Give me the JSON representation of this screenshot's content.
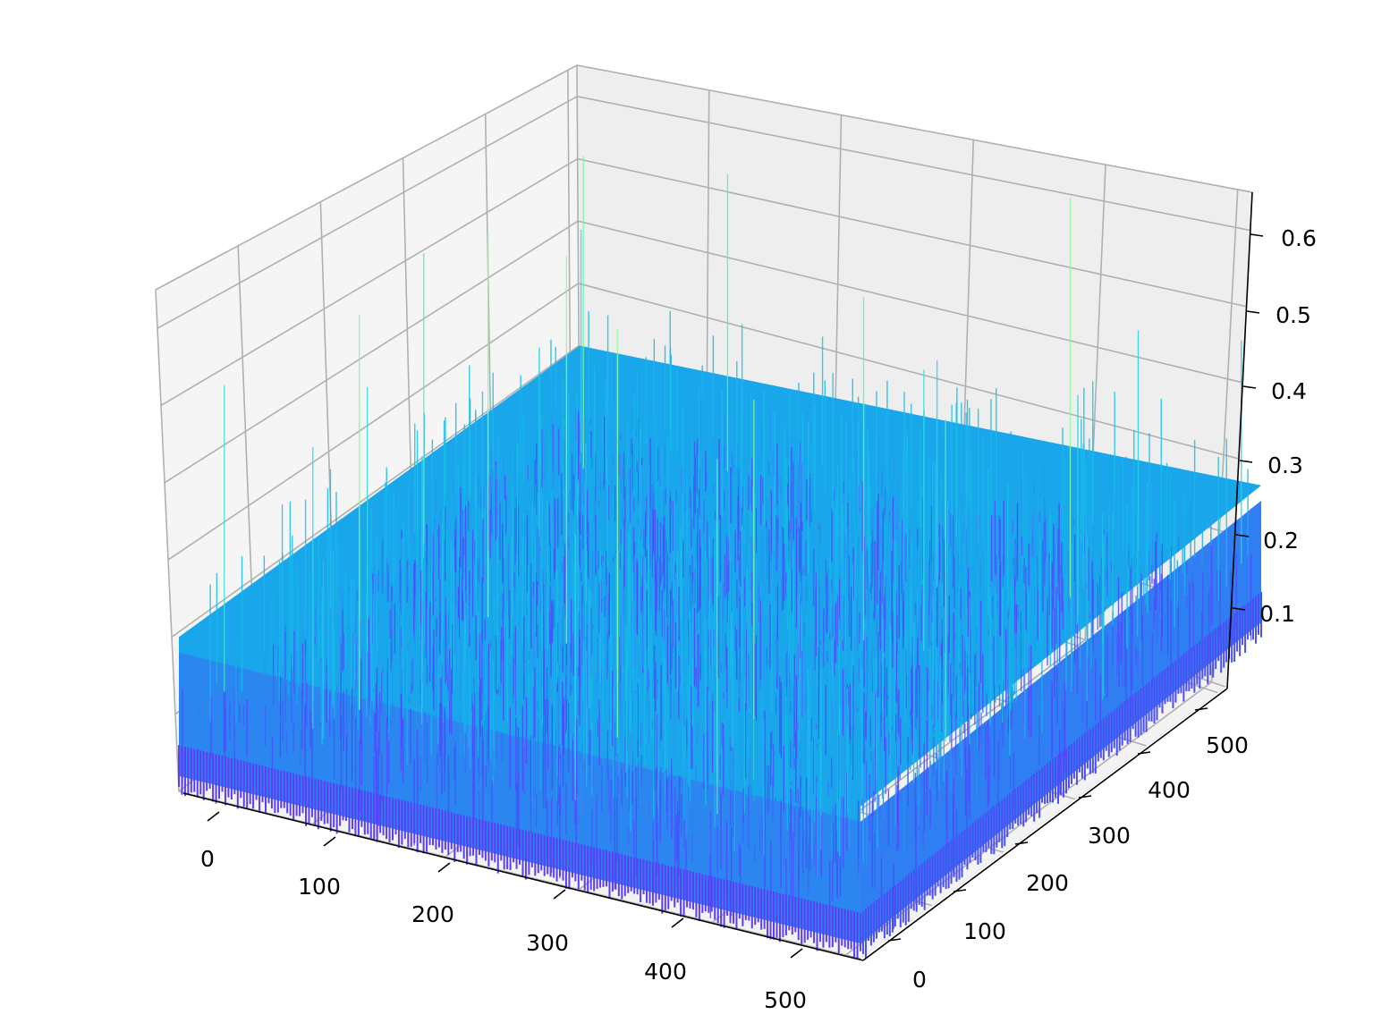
{
  "chart_data": {
    "type": "surface",
    "title": "",
    "xlabel": "",
    "ylabel": "",
    "zlabel": "",
    "x_range": [
      0,
      511
    ],
    "y_range": [
      0,
      511
    ],
    "z_range": [
      0.0,
      0.65
    ],
    "x_ticks": [
      "0",
      "100",
      "200",
      "300",
      "400",
      "500"
    ],
    "y_ticks": [
      "0",
      "100",
      "200",
      "300",
      "400",
      "500"
    ],
    "z_ticks": [
      "0.1",
      "0.2",
      "0.3",
      "0.4",
      "0.5",
      "0.6"
    ],
    "grid": true,
    "colormap": "rainbow",
    "colors": {
      "low": "#4f3cff",
      "mid": "#12b6e6",
      "high": "#7ff0b0"
    },
    "surface": {
      "description": "dense random noise field over a 512x512 grid",
      "typical_z_min": 0.0,
      "typical_z_max": 0.3,
      "peak_z": 0.65
    }
  }
}
